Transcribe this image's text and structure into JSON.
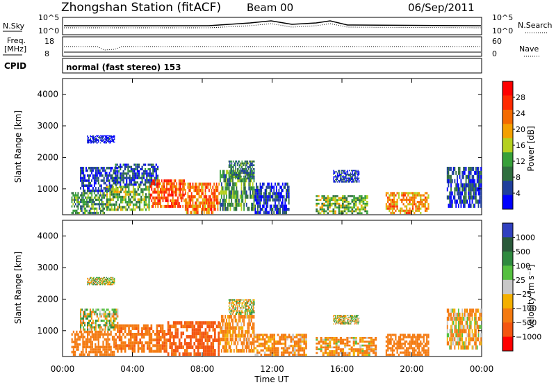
{
  "header": {
    "station": "Zhongshan Station (fitACF)",
    "beam": "Beam 00",
    "date": "06/Sep/2011"
  },
  "top_panel": {
    "nsky_label": "N.Sky",
    "nsearch_label": "N.Search",
    "left_ticks": [
      "10^5",
      "10^0"
    ],
    "right_ticks": [
      "10^5",
      "10^0"
    ]
  },
  "freq_panel": {
    "freq_label": "Freq.",
    "freq_unit": "[MHz]",
    "nave_label": "Nave",
    "left_ticks": [
      "18",
      "8"
    ],
    "right_ticks": [
      "60",
      "0"
    ]
  },
  "cpid": {
    "label": "CPID",
    "value": "normal (fast stereo) 153"
  },
  "colors": {
    "power_scale": [
      "#0000ff",
      "#1f3f9c",
      "#2f6f3f",
      "#37a03a",
      "#b5d01f",
      "#f4a000",
      "#f46a00",
      "#ff2a00",
      "#ff0000"
    ],
    "velocity_scale": [
      "#3040c0",
      "#2a5a3a",
      "#2f8a3f",
      "#55c040",
      "#c8c8c8",
      "#f4b000",
      "#f47a10",
      "#f45510",
      "#ff0000"
    ]
  },
  "chart_data": [
    {
      "type": "heatmap",
      "name": "power",
      "xlabel": "Time UT",
      "ylabel": "Slant Range [km]",
      "colorbar_label": "Power [dB]",
      "colorbar_ticks": [
        "28",
        "24",
        "20",
        "16",
        "12",
        "8",
        "4"
      ],
      "xlim": [
        0,
        24
      ],
      "ylim": [
        180,
        4500
      ],
      "x_ticks": [
        "00:00",
        "04:00",
        "08:00",
        "12:00",
        "16:00",
        "20:00",
        "00:00"
      ],
      "y_ticks": [
        "1000",
        "2000",
        "3000",
        "4000"
      ],
      "blobs": [
        {
          "t0": 0.5,
          "t1": 2.5,
          "r0": 200,
          "r1": 900,
          "v": 12
        },
        {
          "t0": 1.0,
          "t1": 3.2,
          "r0": 900,
          "r1": 1700,
          "v": 6
        },
        {
          "t0": 1.4,
          "t1": 3.0,
          "r0": 2450,
          "r1": 2700,
          "v": 4
        },
        {
          "t0": 2.5,
          "t1": 5.0,
          "r0": 300,
          "r1": 1100,
          "v": 14
        },
        {
          "t0": 3.0,
          "t1": 5.5,
          "r0": 1100,
          "r1": 1800,
          "v": 7
        },
        {
          "t0": 5.0,
          "t1": 7.0,
          "r0": 400,
          "r1": 1300,
          "v": 24
        },
        {
          "t0": 7.0,
          "t1": 9.0,
          "r0": 200,
          "r1": 1200,
          "v": 22
        },
        {
          "t0": 9.0,
          "t1": 11.0,
          "r0": 300,
          "r1": 1600,
          "v": 12
        },
        {
          "t0": 9.5,
          "t1": 11.0,
          "r0": 1300,
          "r1": 1900,
          "v": 10
        },
        {
          "t0": 11.0,
          "t1": 13.0,
          "r0": 200,
          "r1": 1200,
          "v": 6
        },
        {
          "t0": 14.5,
          "t1": 17.5,
          "r0": 200,
          "r1": 800,
          "v": 14
        },
        {
          "t0": 15.5,
          "t1": 17.0,
          "r0": 1200,
          "r1": 1600,
          "v": 6
        },
        {
          "t0": 18.5,
          "t1": 21.0,
          "r0": 200,
          "r1": 900,
          "v": 20
        },
        {
          "t0": 22.0,
          "t1": 24.0,
          "r0": 400,
          "r1": 1700,
          "v": 6
        }
      ]
    },
    {
      "type": "heatmap",
      "name": "velocity",
      "xlabel": "Time UT",
      "ylabel": "Slant Range [km]",
      "colorbar_label": "Velocity [m s⁻¹]",
      "colorbar_ticks": [
        "1000",
        "500",
        "100",
        "25",
        "−25",
        "−100",
        "−500",
        "−1000"
      ],
      "xlim": [
        0,
        24
      ],
      "ylim": [
        180,
        4500
      ],
      "x_ticks": [
        "00:00",
        "04:00",
        "08:00",
        "12:00",
        "16:00",
        "20:00",
        "00:00"
      ],
      "y_ticks": [
        "1000",
        "2000",
        "3000",
        "4000"
      ],
      "blobs": [
        {
          "t0": 0.5,
          "t1": 3.0,
          "r0": 200,
          "r1": 1000,
          "v": -300
        },
        {
          "t0": 1.0,
          "t1": 3.2,
          "r0": 1000,
          "r1": 1700,
          "v": 0
        },
        {
          "t0": 1.4,
          "t1": 3.0,
          "r0": 2450,
          "r1": 2700,
          "v": 0
        },
        {
          "t0": 3.0,
          "t1": 6.0,
          "r0": 300,
          "r1": 1200,
          "v": -400
        },
        {
          "t0": 6.0,
          "t1": 9.0,
          "r0": 200,
          "r1": 1300,
          "v": -600
        },
        {
          "t0": 9.0,
          "t1": 11.0,
          "r0": 300,
          "r1": 1500,
          "v": -200
        },
        {
          "t0": 9.5,
          "t1": 11.0,
          "r0": 1500,
          "r1": 2000,
          "v": 0
        },
        {
          "t0": 11.0,
          "t1": 14.0,
          "r0": 200,
          "r1": 900,
          "v": -200
        },
        {
          "t0": 14.5,
          "t1": 18.0,
          "r0": 200,
          "r1": 800,
          "v": -150
        },
        {
          "t0": 15.5,
          "t1": 17.0,
          "r0": 1200,
          "r1": 1500,
          "v": 0
        },
        {
          "t0": 18.5,
          "t1": 21.0,
          "r0": 200,
          "r1": 900,
          "v": -300
        },
        {
          "t0": 22.0,
          "t1": 24.0,
          "r0": 400,
          "r1": 1700,
          "v": -100
        }
      ]
    }
  ]
}
